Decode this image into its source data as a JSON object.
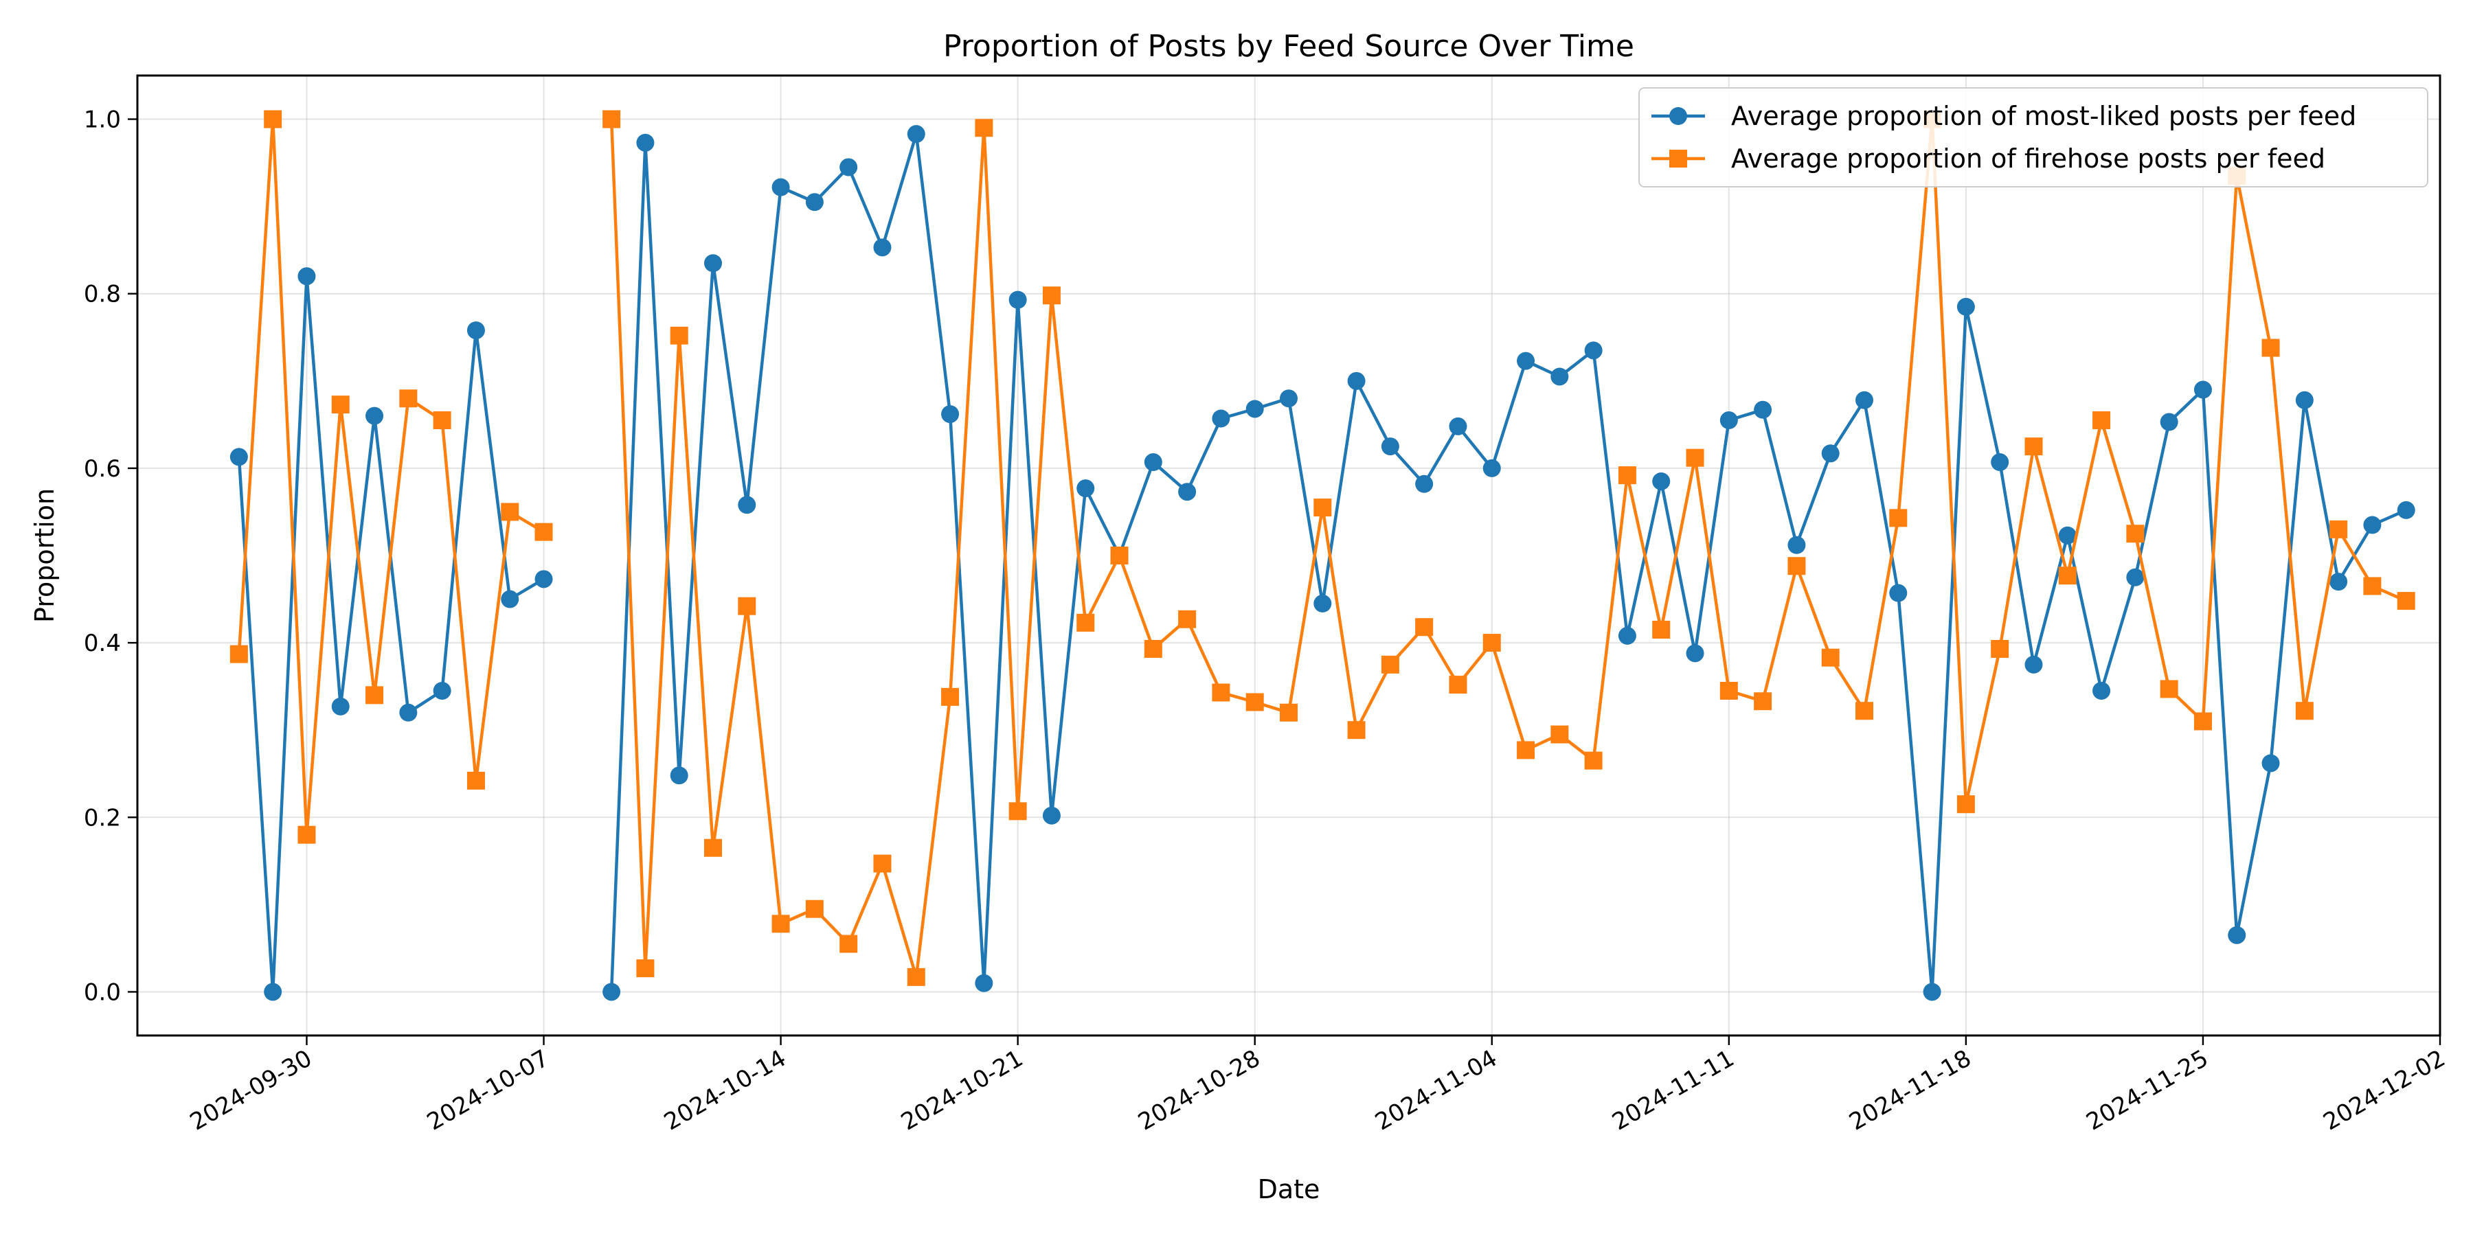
{
  "chart_data": {
    "type": "line",
    "title": "Proportion of Posts by Feed Source Over Time",
    "xlabel": "Date",
    "ylabel": "Proportion",
    "xlim": [
      "2024-09-25",
      "2024-12-02"
    ],
    "ylim": [
      -0.05,
      1.05
    ],
    "yticks": [
      0.0,
      0.2,
      0.4,
      0.6,
      0.8,
      1.0
    ],
    "ytick_labels": [
      "0.0",
      "0.2",
      "0.4",
      "0.6",
      "0.8",
      "1.0"
    ],
    "xticks": [
      "2024-09-30",
      "2024-10-07",
      "2024-10-14",
      "2024-10-21",
      "2024-10-28",
      "2024-11-04",
      "2024-11-11",
      "2024-11-18",
      "2024-11-25",
      "2024-12-02"
    ],
    "grid": true,
    "legend_position": "top-right",
    "series": [
      {
        "name": "Average proportion of most-liked posts per feed",
        "color": "#1f77b4",
        "marker": "circle",
        "segments": [
          [
            [
              "2024-09-28",
              0.613
            ],
            [
              "2024-09-29",
              0.0
            ],
            [
              "2024-09-30",
              0.82
            ],
            [
              "2024-10-01",
              0.327
            ],
            [
              "2024-10-02",
              0.66
            ],
            [
              "2024-10-03",
              0.32
            ],
            [
              "2024-10-04",
              0.345
            ],
            [
              "2024-10-05",
              0.758
            ],
            [
              "2024-10-06",
              0.45
            ],
            [
              "2024-10-07",
              0.473
            ]
          ],
          [
            [
              "2024-10-09",
              0.0
            ],
            [
              "2024-10-10",
              0.973
            ],
            [
              "2024-10-11",
              0.248
            ],
            [
              "2024-10-12",
              0.835
            ],
            [
              "2024-10-13",
              0.558
            ],
            [
              "2024-10-14",
              0.922
            ],
            [
              "2024-10-15",
              0.905
            ],
            [
              "2024-10-16",
              0.945
            ],
            [
              "2024-10-17",
              0.853
            ],
            [
              "2024-10-18",
              0.983
            ],
            [
              "2024-10-19",
              0.662
            ],
            [
              "2024-10-20",
              0.01
            ],
            [
              "2024-10-21",
              0.793
            ],
            [
              "2024-10-22",
              0.202
            ],
            [
              "2024-10-23",
              0.577
            ],
            [
              "2024-10-24",
              0.5
            ],
            [
              "2024-10-25",
              0.607
            ],
            [
              "2024-10-26",
              0.573
            ],
            [
              "2024-10-27",
              0.657
            ],
            [
              "2024-10-28",
              0.668
            ],
            [
              "2024-10-29",
              0.68
            ],
            [
              "2024-10-30",
              0.445
            ],
            [
              "2024-10-31",
              0.7
            ],
            [
              "2024-11-01",
              0.625
            ],
            [
              "2024-11-02",
              0.582
            ],
            [
              "2024-11-03",
              0.648
            ],
            [
              "2024-11-04",
              0.6
            ],
            [
              "2024-11-05",
              0.723
            ],
            [
              "2024-11-06",
              0.705
            ],
            [
              "2024-11-07",
              0.735
            ],
            [
              "2024-11-08",
              0.408
            ],
            [
              "2024-11-09",
              0.585
            ],
            [
              "2024-11-10",
              0.388
            ],
            [
              "2024-11-11",
              0.655
            ],
            [
              "2024-11-12",
              0.667
            ],
            [
              "2024-11-13",
              0.512
            ],
            [
              "2024-11-14",
              0.617
            ],
            [
              "2024-11-15",
              0.678
            ],
            [
              "2024-11-16",
              0.457
            ],
            [
              "2024-11-17",
              0.0
            ],
            [
              "2024-11-18",
              0.785
            ],
            [
              "2024-11-19",
              0.607
            ],
            [
              "2024-11-20",
              0.375
            ],
            [
              "2024-11-21",
              0.523
            ],
            [
              "2024-11-22",
              0.345
            ],
            [
              "2024-11-23",
              0.475
            ],
            [
              "2024-11-24",
              0.653
            ],
            [
              "2024-11-25",
              0.69
            ],
            [
              "2024-11-26",
              0.065
            ],
            [
              "2024-11-27",
              0.262
            ],
            [
              "2024-11-28",
              0.678
            ],
            [
              "2024-11-29",
              0.47
            ],
            [
              "2024-11-30",
              0.535
            ],
            [
              "2024-12-01",
              0.552
            ]
          ]
        ]
      },
      {
        "name": "Average proportion of firehose posts per feed",
        "color": "#ff7f0e",
        "marker": "square",
        "segments": [
          [
            [
              "2024-09-28",
              0.387
            ],
            [
              "2024-09-29",
              1.0
            ],
            [
              "2024-09-30",
              0.18
            ],
            [
              "2024-10-01",
              0.673
            ],
            [
              "2024-10-02",
              0.34
            ],
            [
              "2024-10-03",
              0.68
            ],
            [
              "2024-10-04",
              0.655
            ],
            [
              "2024-10-05",
              0.242
            ],
            [
              "2024-10-06",
              0.55
            ],
            [
              "2024-10-07",
              0.527
            ]
          ],
          [
            [
              "2024-10-09",
              1.0
            ],
            [
              "2024-10-10",
              0.027
            ],
            [
              "2024-10-11",
              0.752
            ],
            [
              "2024-10-12",
              0.165
            ],
            [
              "2024-10-13",
              0.442
            ],
            [
              "2024-10-14",
              0.078
            ],
            [
              "2024-10-15",
              0.095
            ],
            [
              "2024-10-16",
              0.055
            ],
            [
              "2024-10-17",
              0.147
            ],
            [
              "2024-10-18",
              0.017
            ],
            [
              "2024-10-19",
              0.338
            ],
            [
              "2024-10-20",
              0.99
            ],
            [
              "2024-10-21",
              0.207
            ],
            [
              "2024-10-22",
              0.798
            ],
            [
              "2024-10-23",
              0.423
            ],
            [
              "2024-10-24",
              0.5
            ],
            [
              "2024-10-25",
              0.393
            ],
            [
              "2024-10-26",
              0.427
            ],
            [
              "2024-10-27",
              0.343
            ],
            [
              "2024-10-28",
              0.332
            ],
            [
              "2024-10-29",
              0.32
            ],
            [
              "2024-10-30",
              0.555
            ],
            [
              "2024-10-31",
              0.3
            ],
            [
              "2024-11-01",
              0.375
            ],
            [
              "2024-11-02",
              0.418
            ],
            [
              "2024-11-03",
              0.352
            ],
            [
              "2024-11-04",
              0.4
            ],
            [
              "2024-11-05",
              0.277
            ],
            [
              "2024-11-06",
              0.295
            ],
            [
              "2024-11-07",
              0.265
            ],
            [
              "2024-11-08",
              0.592
            ],
            [
              "2024-11-09",
              0.415
            ],
            [
              "2024-11-10",
              0.612
            ],
            [
              "2024-11-11",
              0.345
            ],
            [
              "2024-11-12",
              0.333
            ],
            [
              "2024-11-13",
              0.488
            ],
            [
              "2024-11-14",
              0.383
            ],
            [
              "2024-11-15",
              0.322
            ],
            [
              "2024-11-16",
              0.543
            ],
            [
              "2024-11-17",
              1.0
            ],
            [
              "2024-11-18",
              0.215
            ],
            [
              "2024-11-19",
              0.393
            ],
            [
              "2024-11-20",
              0.625
            ],
            [
              "2024-11-21",
              0.477
            ],
            [
              "2024-11-22",
              0.655
            ],
            [
              "2024-11-23",
              0.525
            ],
            [
              "2024-11-24",
              0.347
            ],
            [
              "2024-11-25",
              0.31
            ],
            [
              "2024-11-26",
              0.935
            ],
            [
              "2024-11-27",
              0.738
            ],
            [
              "2024-11-28",
              0.322
            ],
            [
              "2024-11-29",
              0.53
            ],
            [
              "2024-11-30",
              0.465
            ],
            [
              "2024-12-01",
              0.448
            ]
          ]
        ]
      }
    ]
  }
}
